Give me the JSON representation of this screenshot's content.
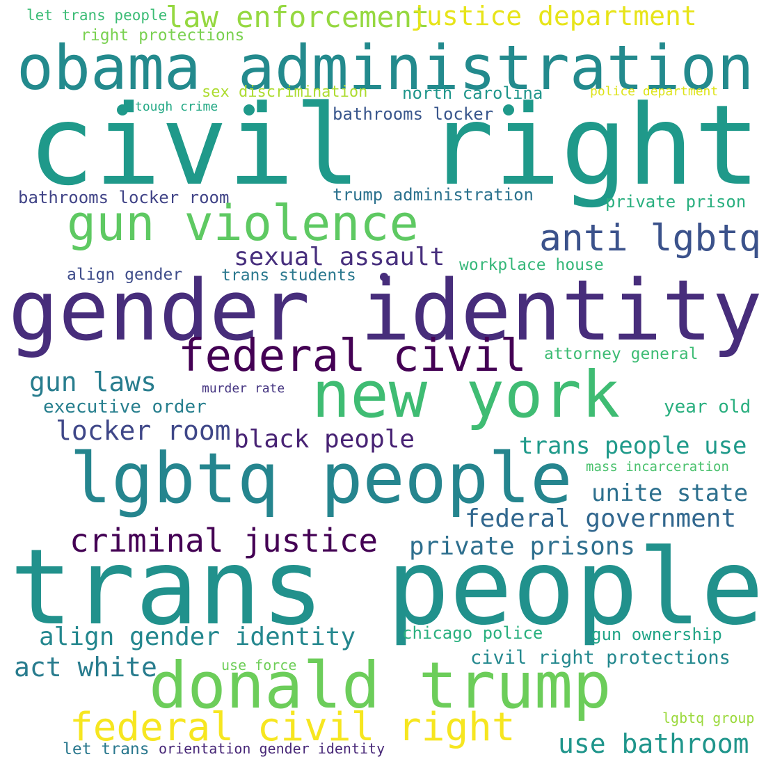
{
  "words": [
    {
      "text": "let trans people",
      "color": "#3bbc75"
    },
    {
      "text": "right protections",
      "color": "#7ad151"
    },
    {
      "text": "law enforcement",
      "color": "#95d840"
    },
    {
      "text": "justice department",
      "color": "#e7e419"
    },
    {
      "text": "obama administration",
      "color": "#238a8d"
    },
    {
      "text": "sex discrimination",
      "color": "#addc30"
    },
    {
      "text": "north carolina",
      "color": "#1f968b"
    },
    {
      "text": "police department",
      "color": "#dde318"
    },
    {
      "text": "tough crime",
      "color": "#22a884"
    },
    {
      "text": "bathrooms locker",
      "color": "#39568c"
    },
    {
      "text": "civil right",
      "color": "#1f998a"
    },
    {
      "text": "bathrooms locker room",
      "color": "#414487"
    },
    {
      "text": "trump administration",
      "color": "#2c728e"
    },
    {
      "text": "private prison",
      "color": "#29af7f"
    },
    {
      "text": "gun violence",
      "color": "#5ec962"
    },
    {
      "text": "anti lgbtq",
      "color": "#3b528b"
    },
    {
      "text": "sexual assault",
      "color": "#472f7d"
    },
    {
      "text": "workplace house",
      "color": "#35b779"
    },
    {
      "text": "align gender",
      "color": "#3e4c8a"
    },
    {
      "text": "trans students",
      "color": "#2a788e"
    },
    {
      "text": "gender identity",
      "color": "#472d7b"
    },
    {
      "text": "federal civil",
      "color": "#440154"
    },
    {
      "text": "attorney general",
      "color": "#3dbc74"
    },
    {
      "text": "gun laws",
      "color": "#287d8e"
    },
    {
      "text": "new york",
      "color": "#3fbc73"
    },
    {
      "text": "murder rate",
      "color": "#453581"
    },
    {
      "text": "executive order",
      "color": "#277f8e"
    },
    {
      "text": "year old",
      "color": "#29af7f"
    },
    {
      "text": "locker room",
      "color": "#3f4788"
    },
    {
      "text": "black people",
      "color": "#482374"
    },
    {
      "text": "trans people use",
      "color": "#1f9a8a"
    },
    {
      "text": "lgbtq people",
      "color": "#25858e"
    },
    {
      "text": "mass incarceration",
      "color": "#4ac16d"
    },
    {
      "text": "unite state",
      "color": "#2d708e"
    },
    {
      "text": "federal government",
      "color": "#31678e"
    },
    {
      "text": "criminal justice",
      "color": "#440154"
    },
    {
      "text": "private prisons",
      "color": "#2e6f8e"
    },
    {
      "text": "trans people",
      "color": "#21918c"
    },
    {
      "text": "align gender identity",
      "color": "#24878e"
    },
    {
      "text": "chicago police",
      "color": "#2ab07f"
    },
    {
      "text": "gun ownership",
      "color": "#20a486"
    },
    {
      "text": "act white",
      "color": "#287c8e"
    },
    {
      "text": "civil right protections",
      "color": "#23888e"
    },
    {
      "text": "use force",
      "color": "#6ece58"
    },
    {
      "text": "donald trump",
      "color": "#6ccd5a"
    },
    {
      "text": "federal civil right",
      "color": "#f6e620"
    },
    {
      "text": "use bathroom",
      "color": "#1f958b"
    },
    {
      "text": "lgbtq group",
      "color": "#9bd93c"
    },
    {
      "text": "let trans",
      "color": "#2a788e"
    },
    {
      "text": "orientation gender identity",
      "color": "#482878"
    }
  ],
  "dots": [
    {
      "color": "#1f998a"
    },
    {
      "color": "#1f998a"
    },
    {
      "color": "#1f998a"
    },
    {
      "color": "#472d7b"
    }
  ]
}
